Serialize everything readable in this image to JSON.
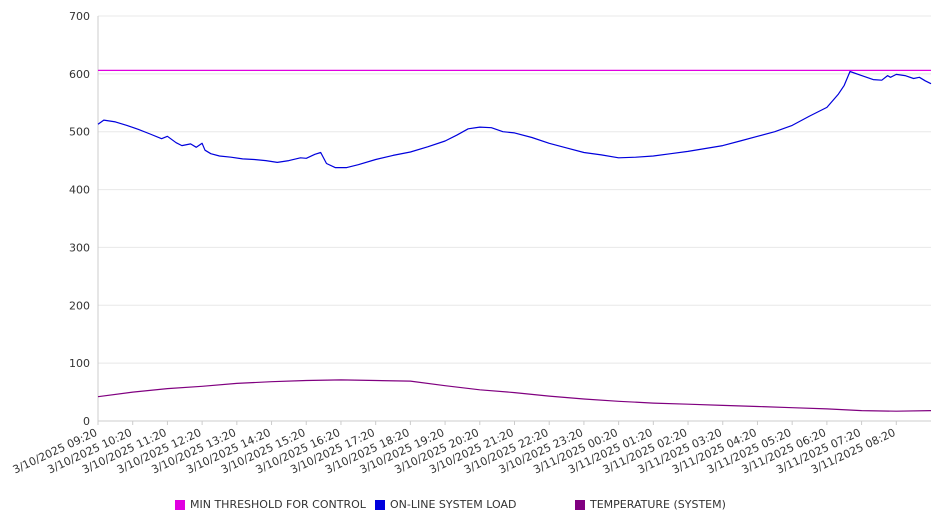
{
  "chart_data": {
    "type": "line",
    "title": "",
    "xlabel": "",
    "ylabel": "",
    "ylim": [
      0,
      700
    ],
    "yticks": [
      0,
      100,
      200,
      300,
      400,
      500,
      600,
      700
    ],
    "grid": true,
    "legend_position": "bottom",
    "colors": {
      "threshold": "#e000e0",
      "load": "#0000dd",
      "temperature": "#800080",
      "grid": "#e8e8e8",
      "axis": "#cccccc"
    },
    "x_tick_labels": [
      "3/10/2025 09:20",
      "3/10/2025 10:20",
      "3/10/2025 11:20",
      "3/10/2025 12:20",
      "3/10/2025 13:20",
      "3/10/2025 14:20",
      "3/10/2025 15:20",
      "3/10/2025 16:20",
      "3/10/2025 17:20",
      "3/10/2025 18:20",
      "3/10/2025 19:20",
      "3/10/2025 20:20",
      "3/10/2025 21:20",
      "3/10/2025 22:20",
      "3/10/2025 23:20",
      "3/11/2025 00:20",
      "3/11/2025 01:20",
      "3/11/2025 02:20",
      "3/11/2025 03:20",
      "3/11/2025 04:20",
      "3/11/2025 05:20",
      "3/11/2025 06:20",
      "3/11/2025 07:20",
      "3/11/2025 08:20"
    ],
    "x_range": [
      "3/10/2025 09:20",
      "3/11/2025 09:20"
    ],
    "series": [
      {
        "name": "MIN THRESHOLD FOR CONTROL",
        "color_key": "threshold",
        "x": [
          "3/10/2025 09:20",
          "3/11/2025 09:20"
        ],
        "values": [
          606,
          606
        ]
      },
      {
        "name": "ON-LINE SYSTEM LOAD",
        "color_key": "load",
        "x": [
          "3/10/2025 09:20",
          "3/10/2025 09:30",
          "3/10/2025 09:50",
          "3/10/2025 10:10",
          "3/10/2025 10:30",
          "3/10/2025 10:50",
          "3/10/2025 11:10",
          "3/10/2025 11:20",
          "3/10/2025 11:35",
          "3/10/2025 11:45",
          "3/10/2025 12:00",
          "3/10/2025 12:10",
          "3/10/2025 12:20",
          "3/10/2025 12:25",
          "3/10/2025 12:35",
          "3/10/2025 12:50",
          "3/10/2025 13:10",
          "3/10/2025 13:30",
          "3/10/2025 13:50",
          "3/10/2025 14:10",
          "3/10/2025 14:30",
          "3/10/2025 14:50",
          "3/10/2025 15:10",
          "3/10/2025 15:20",
          "3/10/2025 15:35",
          "3/10/2025 15:45",
          "3/10/2025 15:55",
          "3/10/2025 16:10",
          "3/10/2025 16:30",
          "3/10/2025 16:50",
          "3/10/2025 17:20",
          "3/10/2025 17:50",
          "3/10/2025 18:20",
          "3/10/2025 18:50",
          "3/10/2025 19:20",
          "3/10/2025 19:40",
          "3/10/2025 20:00",
          "3/10/2025 20:20",
          "3/10/2025 20:40",
          "3/10/2025 21:00",
          "3/10/2025 21:20",
          "3/10/2025 21:50",
          "3/10/2025 22:20",
          "3/10/2025 22:50",
          "3/10/2025 23:20",
          "3/10/2025 23:50",
          "3/11/2025 00:20",
          "3/11/2025 00:50",
          "3/11/2025 01:20",
          "3/11/2025 01:50",
          "3/11/2025 02:20",
          "3/11/2025 02:50",
          "3/11/2025 03:20",
          "3/11/2025 03:50",
          "3/11/2025 04:20",
          "3/11/2025 04:50",
          "3/11/2025 05:20",
          "3/11/2025 05:50",
          "3/11/2025 06:20",
          "3/11/2025 06:40",
          "3/11/2025 06:50",
          "3/11/2025 07:00",
          "3/11/2025 07:20",
          "3/11/2025 07:40",
          "3/11/2025 07:55",
          "3/11/2025 08:05",
          "3/11/2025 08:10",
          "3/11/2025 08:20",
          "3/11/2025 08:35",
          "3/11/2025 08:50",
          "3/11/2025 09:00",
          "3/11/2025 09:10",
          "3/11/2025 09:20"
        ],
        "values": [
          513,
          520,
          517,
          511,
          504,
          496,
          488,
          492,
          481,
          476,
          479,
          473,
          480,
          468,
          462,
          458,
          456,
          453,
          452,
          450,
          447,
          450,
          455,
          454,
          461,
          464,
          445,
          438,
          438,
          443,
          452,
          459,
          465,
          474,
          484,
          494,
          505,
          508,
          507,
          500,
          498,
          490,
          480,
          472,
          464,
          460,
          455,
          456,
          458,
          462,
          466,
          471,
          476,
          484,
          492,
          500,
          511,
          527,
          542,
          565,
          580,
          604,
          597,
          590,
          589,
          597,
          594,
          599,
          597,
          592,
          594,
          588,
          583
        ]
      },
      {
        "name": "TEMPERATURE (SYSTEM)",
        "color_key": "temperature",
        "x": [
          "3/10/2025 09:20",
          "3/10/2025 10:20",
          "3/10/2025 11:20",
          "3/10/2025 12:20",
          "3/10/2025 13:20",
          "3/10/2025 14:20",
          "3/10/2025 15:20",
          "3/10/2025 16:20",
          "3/10/2025 17:20",
          "3/10/2025 18:20",
          "3/10/2025 19:20",
          "3/10/2025 20:20",
          "3/10/2025 21:20",
          "3/10/2025 22:20",
          "3/10/2025 23:20",
          "3/11/2025 00:20",
          "3/11/2025 01:20",
          "3/11/2025 02:20",
          "3/11/2025 03:20",
          "3/11/2025 04:20",
          "3/11/2025 05:20",
          "3/11/2025 06:20",
          "3/11/2025 07:20",
          "3/11/2025 08:20",
          "3/11/2025 09:20"
        ],
        "values": [
          42,
          50,
          56,
          60,
          65,
          68,
          70,
          71,
          70,
          69,
          61,
          54,
          49,
          43,
          38,
          34,
          31,
          29,
          27,
          25,
          23,
          21,
          18,
          17,
          18
        ]
      }
    ]
  }
}
